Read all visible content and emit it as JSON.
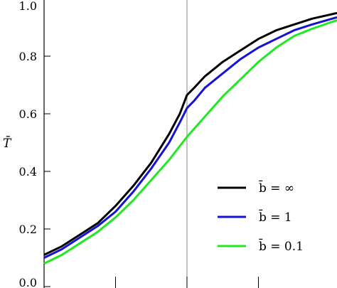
{
  "chart_data": {
    "type": "line",
    "ylabel": "T̄",
    "xlim": [
      0,
      4.1
    ],
    "ylim": [
      0,
      1.0
    ],
    "yticks": [
      "0.0",
      "0.2",
      "0.4",
      "0.6",
      "0.8",
      "1.0"
    ],
    "xticks": [
      1,
      2,
      3
    ],
    "vline_x": 2,
    "legend_position": "lower-right",
    "series": [
      {
        "name": "b̄ = ∞",
        "color": "#000000",
        "x": [
          0.0,
          0.25,
          0.5,
          0.75,
          1.0,
          1.25,
          1.5,
          1.75,
          1.9,
          2.0,
          2.1,
          2.25,
          2.5,
          2.75,
          3.0,
          3.25,
          3.5,
          3.75,
          4.1
        ],
        "y": [
          0.11,
          0.14,
          0.18,
          0.22,
          0.28,
          0.35,
          0.43,
          0.53,
          0.6,
          0.665,
          0.69,
          0.73,
          0.78,
          0.82,
          0.86,
          0.89,
          0.91,
          0.93,
          0.95
        ]
      },
      {
        "name": "b̄ = 1",
        "color": "#1414d2",
        "x": [
          0.0,
          0.25,
          0.5,
          0.75,
          1.0,
          1.25,
          1.5,
          1.75,
          1.9,
          2.0,
          2.1,
          2.25,
          2.5,
          2.75,
          3.0,
          3.25,
          3.5,
          3.75,
          4.1
        ],
        "y": [
          0.1,
          0.13,
          0.17,
          0.21,
          0.26,
          0.33,
          0.41,
          0.5,
          0.57,
          0.62,
          0.645,
          0.69,
          0.74,
          0.79,
          0.83,
          0.86,
          0.89,
          0.91,
          0.935
        ]
      },
      {
        "name": "b̄ = 0.1",
        "color": "#22e822",
        "x": [
          0.0,
          0.25,
          0.5,
          0.75,
          1.0,
          1.25,
          1.5,
          1.75,
          2.0,
          2.25,
          2.5,
          2.75,
          3.0,
          3.25,
          3.5,
          3.75,
          4.1
        ],
        "y": [
          0.08,
          0.11,
          0.15,
          0.19,
          0.24,
          0.3,
          0.37,
          0.44,
          0.52,
          0.59,
          0.66,
          0.72,
          0.78,
          0.83,
          0.87,
          0.895,
          0.925
        ]
      }
    ]
  }
}
